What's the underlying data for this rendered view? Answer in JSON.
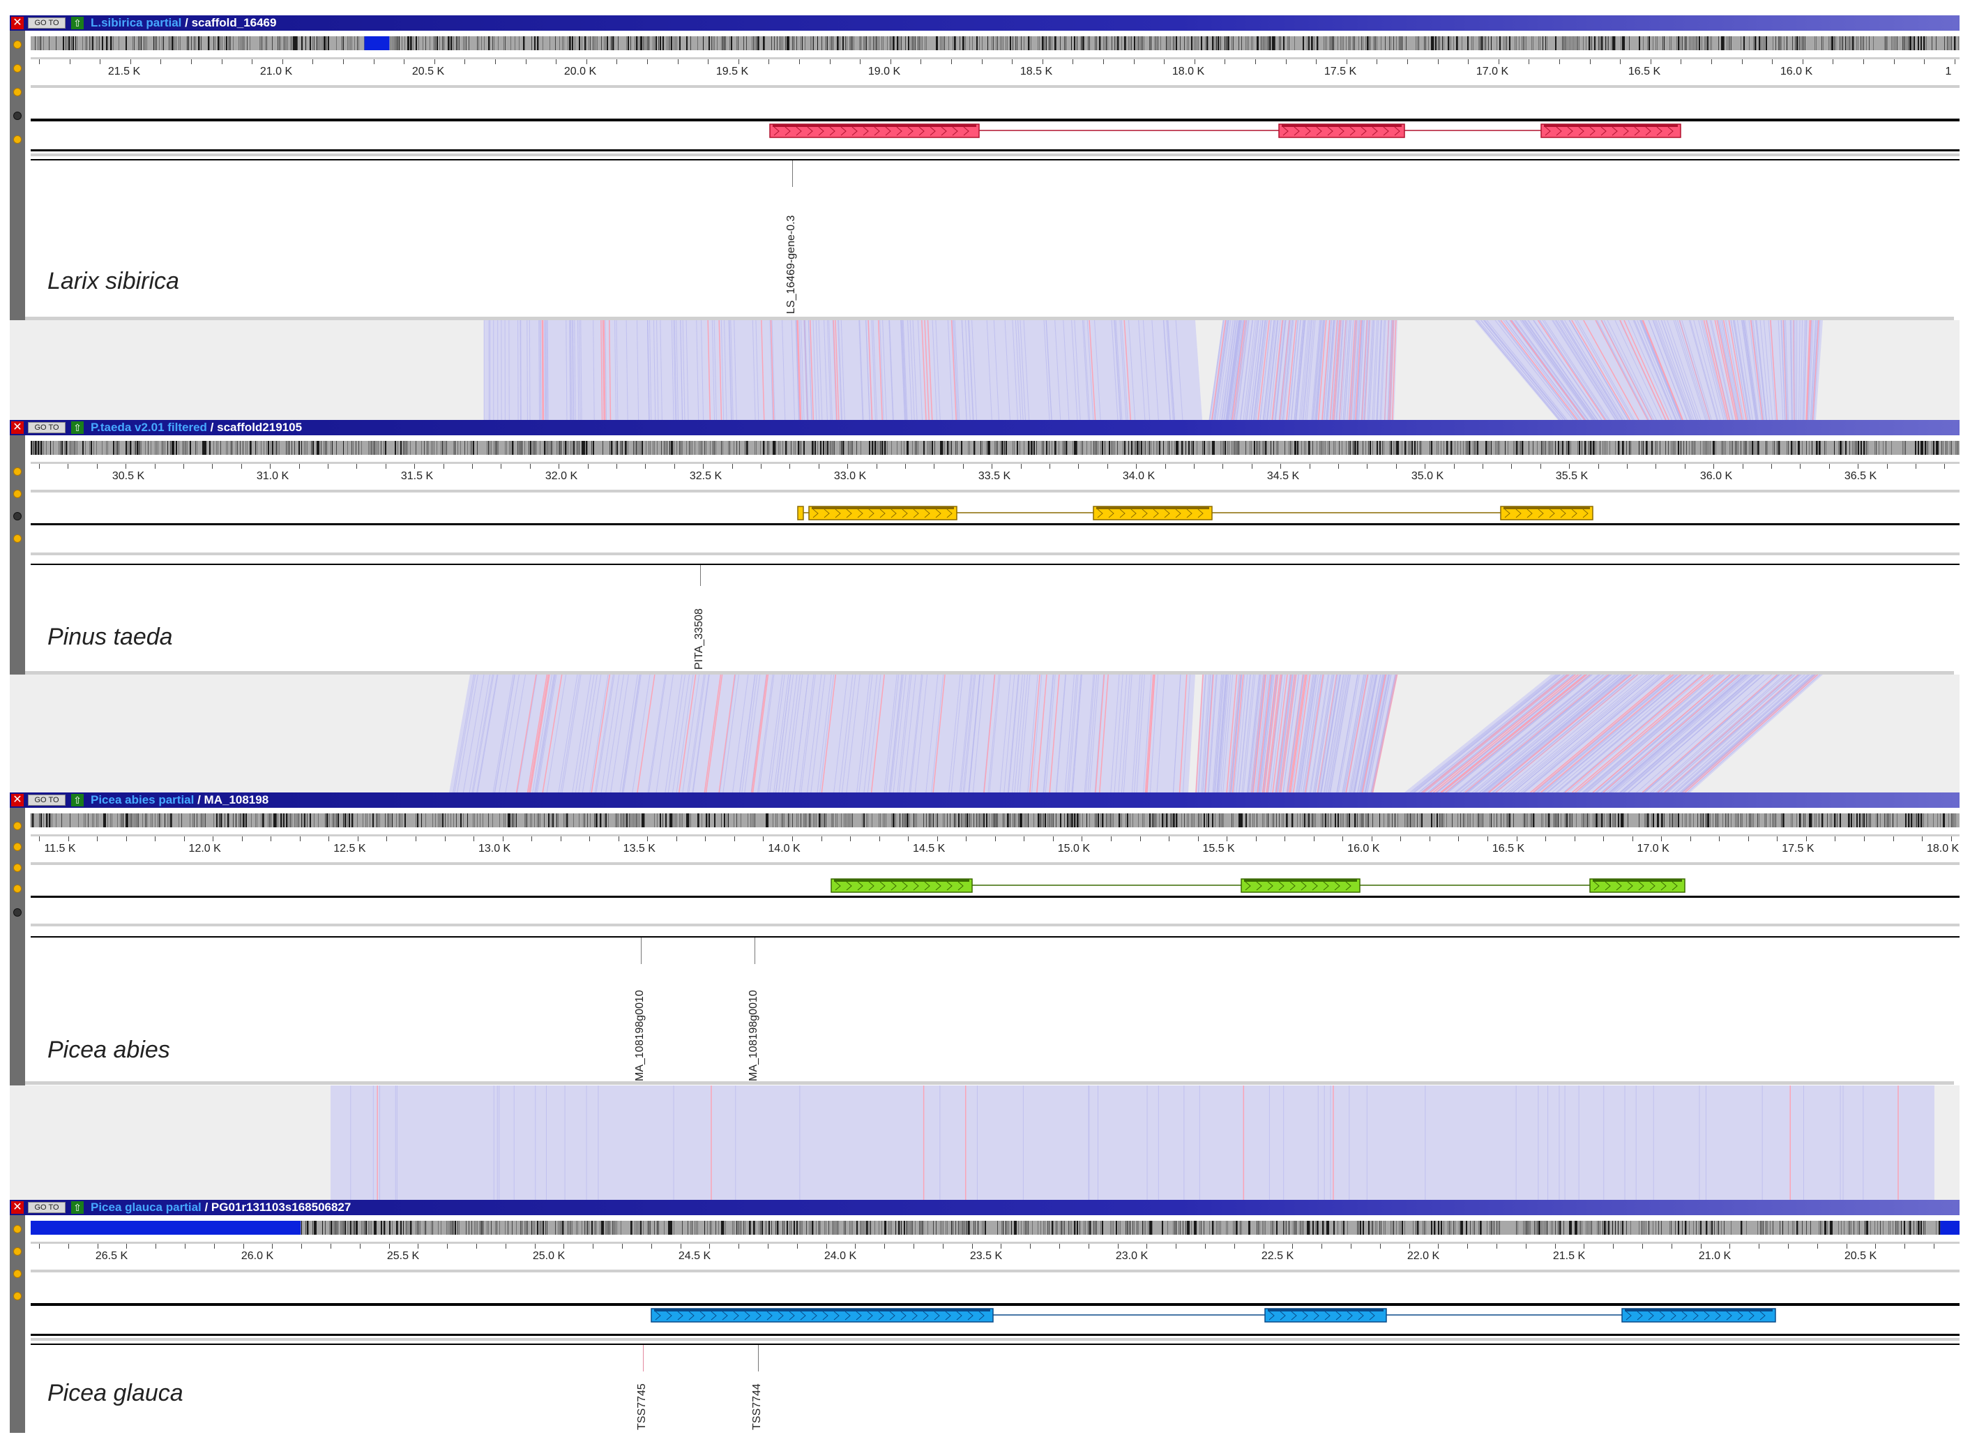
{
  "panels": [
    {
      "dataset": "L.sibirica partial",
      "scaffold": "scaffold_16469",
      "species": "Larix sibirica",
      "ticks": [
        "21.5 K",
        "21.0 K",
        "20.5 K",
        "20.0 K",
        "19.5 K",
        "19.0 K",
        "18.5 K",
        "18.0 K",
        "17.5 K",
        "17.0 K",
        "16.5 K",
        "16.0 K",
        "1"
      ],
      "labels": [
        "LS_16469-gene-0.3"
      ],
      "gene_color": "#ff5577",
      "gene_edge": "#b0122f"
    },
    {
      "dataset": "P.taeda v2.01 filtered",
      "scaffold": "scaffold219105",
      "species": "Pinus taeda",
      "ticks": [
        "30.5 K",
        "31.0 K",
        "31.5 K",
        "32.0 K",
        "32.5 K",
        "33.0 K",
        "33.5 K",
        "34.0 K",
        "34.5 K",
        "35.0 K",
        "35.5 K",
        "36.0 K",
        "36.5 K"
      ],
      "labels": [
        "PITA_33508"
      ],
      "gene_color": "#ffcc00",
      "gene_edge": "#8a6a00"
    },
    {
      "dataset": "Picea abies partial",
      "scaffold": "MA_108198",
      "species": "Picea abies",
      "ticks": [
        "11.5 K",
        "12.0 K",
        "12.5 K",
        "13.0 K",
        "13.5 K",
        "14.0 K",
        "14.5 K",
        "15.0 K",
        "15.5 K",
        "16.0 K",
        "16.5 K",
        "17.0 K",
        "17.5 K",
        "18.0 K"
      ],
      "labels": [
        "MA_108198g0010",
        "MA_108198g0010"
      ],
      "gene_color": "#88dd22",
      "gene_edge": "#3a6a00"
    },
    {
      "dataset": "Picea glauca partial",
      "scaffold": "PG01r131103s168506827",
      "species": "Picea glauca",
      "ticks": [
        "26.5 K",
        "26.0 K",
        "25.5 K",
        "25.0 K",
        "24.5 K",
        "24.0 K",
        "23.5 K",
        "23.0 K",
        "22.5 K",
        "22.0 K",
        "21.5 K",
        "21.0 K",
        "20.5 K"
      ],
      "labels": [
        "TSS7745",
        "TSS7744"
      ],
      "gene_color": "#1aa3ee",
      "gene_edge": "#0a4a88"
    }
  ],
  "buttons": {
    "close": "✕",
    "goto": "GO TO",
    "up": "⇧"
  },
  "colors": {
    "link_blue": "#b8b8ee",
    "link_red": "#ff9fb0",
    "link_bg": "#eeeeee"
  }
}
